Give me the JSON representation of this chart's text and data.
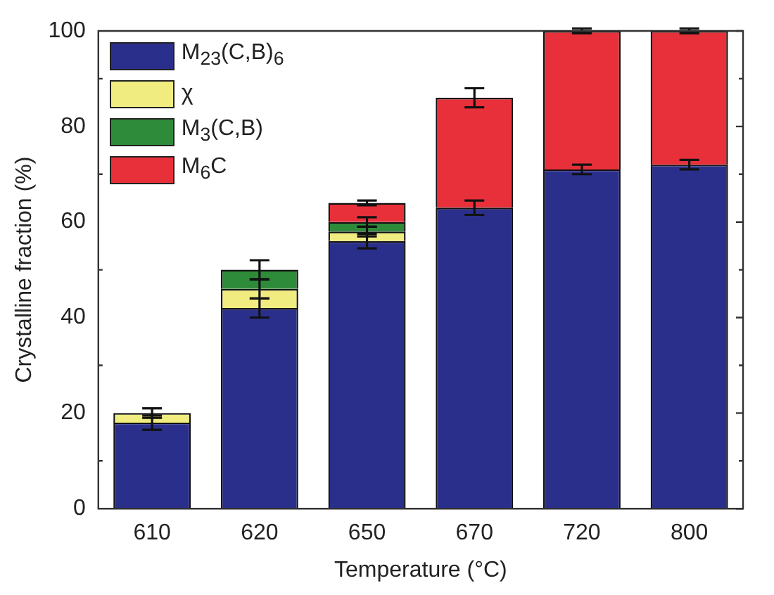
{
  "chart_data": {
    "type": "bar",
    "stacked": true,
    "xlabel": "Temperature (°C)",
    "ylabel": "Crystalline fraction (%)",
    "categories": [
      "610",
      "620",
      "650",
      "670",
      "720",
      "800"
    ],
    "series": [
      {
        "name": "M$_{23}$(C,B)$_{6}$",
        "color": "#2b2f8c",
        "values": [
          18,
          42,
          56,
          63,
          71,
          72
        ],
        "errors": [
          1.5,
          2,
          1.5,
          1.5,
          1,
          1
        ]
      },
      {
        "name": "χ",
        "color": "#f0ec80",
        "values": [
          2,
          4,
          2,
          null,
          null,
          null
        ],
        "errors": [
          1,
          2,
          1,
          null,
          null,
          null
        ]
      },
      {
        "name": "M$_{3}$(C,B)",
        "color": "#2e8b3a",
        "values": [
          null,
          4,
          2,
          null,
          null,
          null
        ],
        "errors": [
          null,
          2,
          1,
          null,
          null,
          null
        ]
      },
      {
        "name": "M$_{6}$C",
        "color": "#e8303a",
        "values": [
          null,
          null,
          4,
          23,
          29,
          28
        ],
        "errors": [
          null,
          null,
          0.5,
          2,
          0.5,
          0.5
        ]
      }
    ],
    "ylim": [
      0,
      100
    ],
    "yticks": [
      0,
      20,
      40,
      60,
      80,
      100
    ],
    "legend": "top left",
    "grid": false
  }
}
